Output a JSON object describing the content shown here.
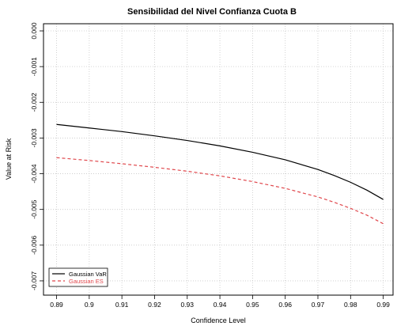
{
  "chart_data": {
    "type": "line",
    "title": "Sensibilidad del Nivel Confianza Cuota B",
    "xlabel": "Confidence Level",
    "ylabel": "Value at Risk",
    "xlim": [
      0.886,
      0.993
    ],
    "ylim": [
      -0.0074,
      0.0002
    ],
    "xticks": [
      "0.89",
      "0.9",
      "0.91",
      "0.92",
      "0.93",
      "0.94",
      "0.95",
      "0.96",
      "0.97",
      "0.98",
      "0.99"
    ],
    "yticks": [
      "0.000",
      "-0.001",
      "-0.002",
      "-0.003",
      "-0.004",
      "-0.005",
      "-0.006",
      "-0.007"
    ],
    "grid": true,
    "legend_position": "bottom-left",
    "series": [
      {
        "name": "Gaussian VaR",
        "color": "#000000",
        "style": "solid",
        "x": [
          0.89,
          0.9,
          0.91,
          0.92,
          0.93,
          0.94,
          0.95,
          0.96,
          0.97,
          0.975,
          0.98,
          0.985,
          0.99
        ],
        "values": [
          -0.00262,
          -0.00272,
          -0.00282,
          -0.00294,
          -0.00307,
          -0.00322,
          -0.0034,
          -0.00361,
          -0.00388,
          -0.00405,
          -0.00424,
          -0.00446,
          -0.00472
        ]
      },
      {
        "name": "Gaussian ES",
        "color": "#e0474c",
        "style": "dashed",
        "x": [
          0.89,
          0.9,
          0.91,
          0.92,
          0.93,
          0.94,
          0.95,
          0.96,
          0.97,
          0.975,
          0.98,
          0.985,
          0.99
        ],
        "values": [
          -0.00355,
          -0.00363,
          -0.00372,
          -0.00382,
          -0.00393,
          -0.00406,
          -0.00422,
          -0.00441,
          -0.00465,
          -0.0048,
          -0.00497,
          -0.00516,
          -0.0054
        ]
      }
    ]
  }
}
